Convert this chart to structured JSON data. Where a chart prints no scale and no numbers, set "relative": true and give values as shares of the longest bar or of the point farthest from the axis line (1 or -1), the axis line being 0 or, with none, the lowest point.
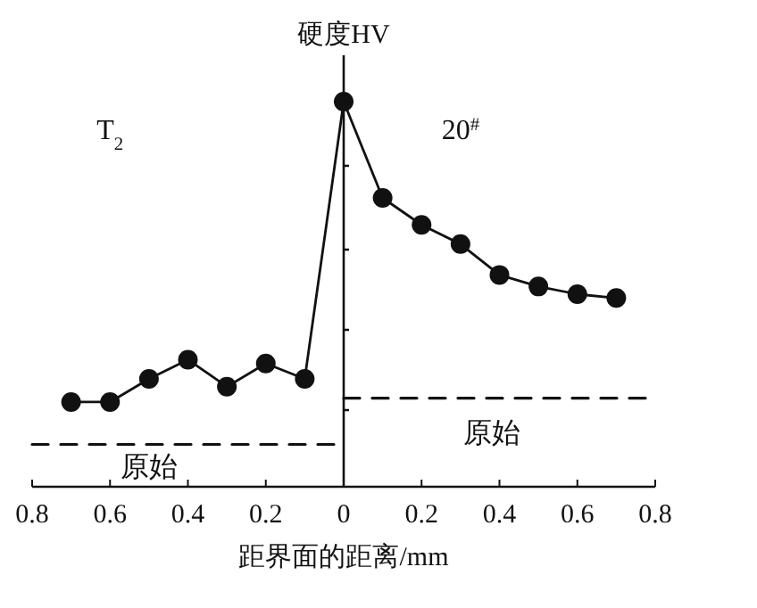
{
  "chart_data": {
    "type": "line",
    "relative": true,
    "ylabel": "硬度HV",
    "xlabel": "距界面的距离/mm",
    "xlim": [
      -0.8,
      0.8
    ],
    "xticks": [
      {
        "value": -0.8,
        "label": "0.8"
      },
      {
        "value": -0.6,
        "label": "0.6"
      },
      {
        "value": -0.4,
        "label": "0.4"
      },
      {
        "value": -0.2,
        "label": "0.2"
      },
      0,
      0.2,
      0.4,
      0.6,
      0.8
    ],
    "series": [
      {
        "color": "#111111",
        "marker": "circle",
        "line_style": "solid",
        "x": [
          -0.7,
          -0.6,
          -0.5,
          -0.4,
          -0.3,
          -0.2,
          -0.1,
          0,
          0.1,
          0.2,
          0.3,
          0.4,
          0.5,
          0.6,
          0.7
        ],
        "values": [
          0.22,
          0.22,
          0.28,
          0.33,
          0.26,
          0.32,
          0.28,
          1,
          0.75,
          0.68,
          0.63,
          0.55,
          0.52,
          0.5,
          0.49
        ]
      },
      {
        "type": "line",
        "color": "#111111",
        "marker": "none",
        "line_style": "dashed",
        "x": [
          -0.8,
          0
        ],
        "values": [
          0.11,
          0.11
        ]
      },
      {
        "type": "line",
        "color": "#111111",
        "marker": "none",
        "line_style": "dashed",
        "x": [
          0,
          0.8
        ],
        "values": [
          0.23,
          0.23
        ]
      }
    ],
    "annotations": [
      "T$_{2}$",
      "20$^{#}$",
      "原始",
      "原始"
    ]
  }
}
